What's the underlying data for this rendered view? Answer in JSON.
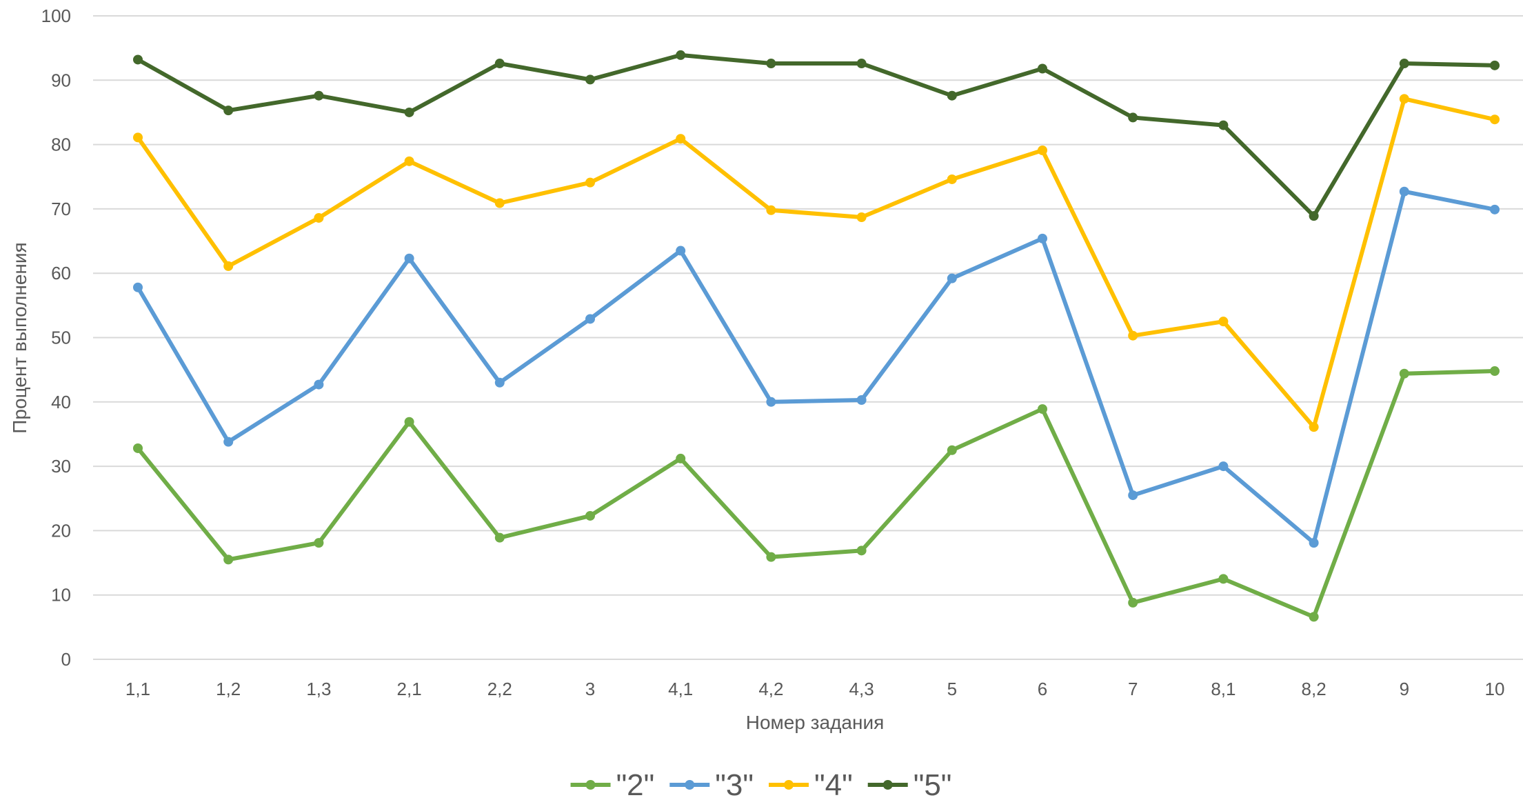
{
  "chart_data": {
    "type": "line",
    "title": "",
    "xlabel": "Номер задания",
    "ylabel": "Процент выполнения",
    "ylim": [
      0,
      100
    ],
    "yticks": [
      0,
      10,
      20,
      30,
      40,
      50,
      60,
      70,
      80,
      90,
      100
    ],
    "grid": true,
    "legend_position": "bottom",
    "categories": [
      "1,1",
      "1,2",
      "1,3",
      "2,1",
      "2,2",
      "3",
      "4,1",
      "4,2",
      "4,3",
      "5",
      "6",
      "7",
      "8,1",
      "8,2",
      "9",
      "10"
    ],
    "series": [
      {
        "name": "\"2\"",
        "color": "#70ad47",
        "values": [
          32.8,
          15.5,
          18.1,
          36.9,
          18.9,
          22.3,
          31.2,
          15.9,
          16.9,
          32.5,
          38.9,
          8.8,
          12.5,
          6.6,
          44.4,
          44.8
        ]
      },
      {
        "name": "\"3\"",
        "color": "#5b9bd5",
        "values": [
          57.8,
          33.8,
          42.7,
          62.3,
          43.0,
          52.9,
          63.5,
          40.0,
          40.3,
          59.2,
          65.4,
          25.5,
          30.0,
          18.1,
          72.7,
          69.9
        ]
      },
      {
        "name": "\"4\"",
        "color": "#ffc000",
        "values": [
          81.1,
          61.1,
          68.6,
          77.4,
          70.9,
          74.1,
          80.9,
          69.8,
          68.7,
          74.6,
          79.1,
          50.3,
          52.5,
          36.1,
          87.1,
          83.9
        ]
      },
      {
        "name": "\"5\"",
        "color": "#43682b",
        "values": [
          93.2,
          85.3,
          87.6,
          85.0,
          92.6,
          90.1,
          93.9,
          92.6,
          92.6,
          87.6,
          91.8,
          84.2,
          83.0,
          68.9,
          92.6,
          92.3
        ]
      }
    ]
  }
}
